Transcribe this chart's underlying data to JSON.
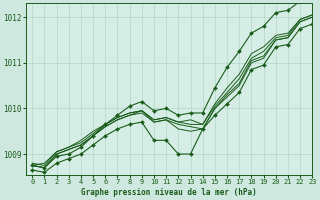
{
  "title": "Graphe pression niveau de la mer (hPa)",
  "bg_color": "#cfe8df",
  "plot_bg_color": "#d6ede6",
  "line_color": "#1a5c1a",
  "grid_color": "#b0d8c8",
  "xlim": [
    -0.5,
    23
  ],
  "ylim": [
    1008.55,
    1012.3
  ],
  "yticks": [
    1009,
    1010,
    1011,
    1012
  ],
  "xticks": [
    0,
    1,
    2,
    3,
    4,
    5,
    6,
    7,
    8,
    9,
    10,
    11,
    12,
    13,
    14,
    15,
    16,
    17,
    18,
    19,
    20,
    21,
    22,
    23
  ],
  "series": [
    [
      1008.75,
      1008.8,
      1009.05,
      1009.15,
      1009.25,
      1009.45,
      1009.65,
      1009.8,
      1009.9,
      1009.95,
      1009.75,
      1009.8,
      1009.7,
      1009.75,
      1009.65,
      1010.05,
      1010.35,
      1010.65,
      1011.1,
      1011.25,
      1011.55,
      1011.6,
      1011.95,
      1012.05
    ],
    [
      1008.8,
      1008.75,
      1009.05,
      1009.15,
      1009.3,
      1009.5,
      1009.65,
      1009.8,
      1009.9,
      1009.95,
      1009.75,
      1009.8,
      1009.7,
      1009.65,
      1009.65,
      1010.1,
      1010.45,
      1010.75,
      1011.2,
      1011.35,
      1011.6,
      1011.65,
      1011.95,
      1012.05
    ],
    [
      1008.75,
      1008.7,
      1009.0,
      1009.1,
      1009.2,
      1009.4,
      1009.6,
      1009.75,
      1009.85,
      1009.9,
      1009.7,
      1009.75,
      1009.65,
      1009.6,
      1009.55,
      1010.0,
      1010.3,
      1010.55,
      1011.05,
      1011.15,
      1011.5,
      1011.55,
      1011.9,
      1012.0
    ],
    [
      1008.75,
      1008.7,
      1009.0,
      1009.1,
      1009.2,
      1009.4,
      1009.6,
      1009.75,
      1009.85,
      1009.95,
      1009.7,
      1009.75,
      1009.55,
      1009.5,
      1009.55,
      1010.0,
      1010.25,
      1010.5,
      1011.0,
      1011.1,
      1011.5,
      1011.55,
      1011.9,
      1012.0
    ],
    [
      1008.75,
      1008.7,
      1008.9,
      1009.0,
      1009.1,
      1009.3,
      1009.5,
      1009.65,
      1009.75,
      1009.85,
      1009.7,
      1009.75,
      1009.3,
      1009.0,
      1009.55,
      1009.95,
      1010.2,
      1010.45,
      1010.95,
      1011.05,
      1011.45,
      1011.5,
      1011.85,
      1011.95
    ],
    [
      1008.7,
      1008.65,
      1008.85,
      1009.0,
      1009.1,
      1009.3,
      1009.5,
      1009.65,
      1009.75,
      1009.8,
      1009.65,
      1009.7,
      1009.5,
      1009.0,
      1009.6,
      1009.95,
      1010.15,
      1010.4,
      1010.9,
      1011.0,
      1011.4,
      1011.45,
      1011.8,
      1011.9
    ],
    [
      1008.7,
      1008.65,
      1008.85,
      1008.95,
      1009.05,
      1009.25,
      1009.45,
      1009.6,
      1009.7,
      1009.75,
      1009.6,
      1009.65,
      1009.5,
      1009.4,
      1009.55,
      1009.85,
      1010.1,
      1010.35,
      1010.85,
      1010.95,
      1011.35,
      1011.4,
      1011.75,
      1011.85
    ],
    [
      1008.65,
      1008.6,
      1008.8,
      1008.9,
      1009.0,
      1009.2,
      1009.4,
      1009.55,
      1009.65,
      1009.7,
      1009.55,
      1009.6,
      1009.5,
      1009.3,
      1009.5,
      1009.8,
      1010.05,
      1010.3,
      1010.8,
      1010.9,
      1011.3,
      1011.35,
      1011.7,
      1011.8
    ]
  ],
  "series_wide": [
    [
      1008.75,
      1008.7,
      1008.95,
      1009.05,
      1009.2,
      1009.45,
      1009.65,
      1009.85,
      1010.0,
      1010.1,
      1009.85,
      1009.95,
      1009.8,
      1009.85,
      1009.85,
      1010.35,
      1010.75,
      1011.1,
      1011.55,
      1011.7,
      1012.05,
      1012.1,
      1012.35,
      1012.45
    ],
    [
      1008.65,
      1008.6,
      1008.8,
      1008.9,
      1009.0,
      1009.2,
      1009.4,
      1009.55,
      1009.65,
      1009.7,
      1009.55,
      1009.6,
      1009.5,
      1009.3,
      1009.5,
      1009.8,
      1010.05,
      1010.3,
      1010.8,
      1010.9,
      1011.3,
      1011.35,
      1011.7,
      1011.8
    ]
  ]
}
